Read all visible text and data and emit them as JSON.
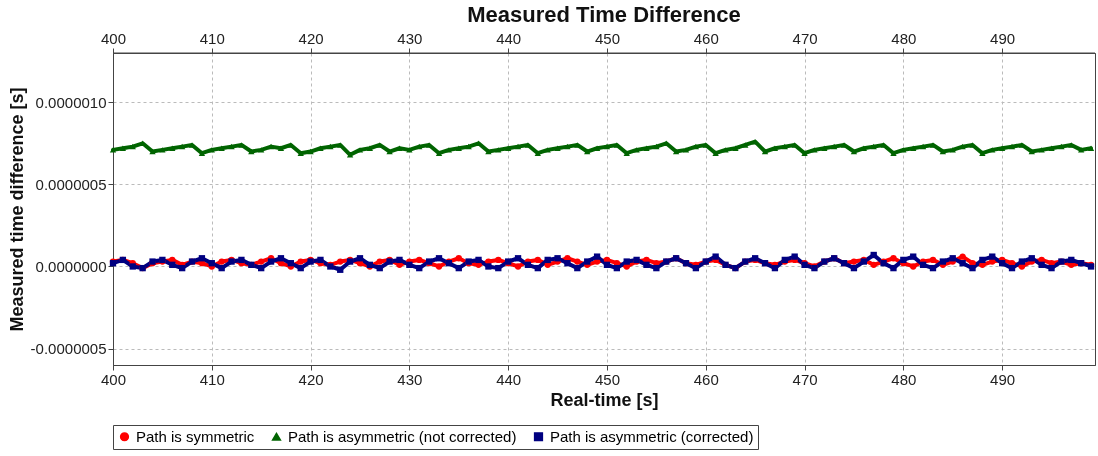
{
  "chart_data": {
    "type": "line",
    "title": "Measured Time Difference",
    "xlabel": "Real-time [s]",
    "ylabel": "Measured time difference [s]",
    "x": [
      400,
      401,
      402,
      403,
      404,
      405,
      406,
      407,
      408,
      409,
      410,
      411,
      412,
      413,
      414,
      415,
      416,
      417,
      418,
      419,
      420,
      421,
      422,
      423,
      424,
      425,
      426,
      427,
      428,
      429,
      430,
      431,
      432,
      433,
      434,
      435,
      436,
      437,
      438,
      439,
      440,
      441,
      442,
      443,
      444,
      445,
      446,
      447,
      448,
      449,
      450,
      451,
      452,
      453,
      454,
      455,
      456,
      457,
      458,
      459,
      460,
      461,
      462,
      463,
      464,
      465,
      466,
      467,
      468,
      469,
      470,
      471,
      472,
      473,
      474,
      475,
      476,
      477,
      478,
      479,
      480,
      481,
      482,
      483,
      484,
      485,
      486,
      487,
      488,
      489,
      490,
      491,
      492,
      493,
      494,
      495,
      496,
      497,
      498,
      499
    ],
    "series": [
      {
        "name": "Path is symmetric",
        "color": "#ff0000",
        "marker": "circle",
        "values": [
          3e-08,
          4e-08,
          2e-08,
          -1e-08,
          2e-08,
          3e-08,
          4e-08,
          1e-08,
          3e-08,
          2e-08,
          0,
          3e-08,
          4e-08,
          2e-08,
          1e-08,
          3e-08,
          5e-08,
          2e-08,
          0,
          3e-08,
          4e-08,
          2e-08,
          1e-08,
          3e-08,
          4e-08,
          2e-08,
          0,
          3e-08,
          4e-08,
          1e-08,
          3e-08,
          4e-08,
          2e-08,
          0,
          3e-08,
          5e-08,
          2e-08,
          1e-08,
          3e-08,
          4e-08,
          2e-08,
          0,
          3e-08,
          4e-08,
          1e-08,
          3e-08,
          5e-08,
          3e-08,
          1e-08,
          3e-08,
          4e-08,
          2e-08,
          0,
          3e-08,
          4e-08,
          2e-08,
          3e-08,
          5e-08,
          2e-08,
          1e-08,
          3e-08,
          4e-08,
          1e-08,
          -1e-08,
          3e-08,
          4e-08,
          2e-08,
          1e-08,
          3e-08,
          4e-08,
          2e-08,
          0,
          3e-08,
          5e-08,
          2e-08,
          3e-08,
          4e-08,
          1e-08,
          3e-08,
          5e-08,
          2e-08,
          0,
          3e-08,
          4e-08,
          1e-08,
          3e-08,
          6e-08,
          2e-08,
          1e-08,
          3e-08,
          4e-08,
          2e-08,
          0,
          3e-08,
          4e-08,
          2e-08,
          3e-08,
          1e-08,
          2e-08,
          1e-08
        ]
      },
      {
        "name": "Path is asymmetric (not corrected)",
        "color": "#006400",
        "marker": "triangle",
        "values": [
          7.1e-07,
          7.2e-07,
          7.3e-07,
          7.5e-07,
          7e-07,
          7.1e-07,
          7.2e-07,
          7.3e-07,
          7.4e-07,
          6.9e-07,
          7.1e-07,
          7.2e-07,
          7.3e-07,
          7.4e-07,
          7e-07,
          7.1e-07,
          7.3e-07,
          7.2e-07,
          7.4e-07,
          6.9e-07,
          7e-07,
          7.2e-07,
          7.3e-07,
          7.4e-07,
          6.8e-07,
          7.1e-07,
          7.2e-07,
          7.4e-07,
          7e-07,
          7.2e-07,
          7.1e-07,
          7.3e-07,
          7.4e-07,
          6.9e-07,
          7.1e-07,
          7.2e-07,
          7.3e-07,
          7.5e-07,
          7e-07,
          7.1e-07,
          7.2e-07,
          7.3e-07,
          7.4e-07,
          6.9e-07,
          7.1e-07,
          7.2e-07,
          7.3e-07,
          7.4e-07,
          7e-07,
          7.2e-07,
          7.3e-07,
          7.4e-07,
          6.9e-07,
          7.1e-07,
          7.2e-07,
          7.3e-07,
          7.5e-07,
          7e-07,
          7.1e-07,
          7.3e-07,
          7.4e-07,
          6.9e-07,
          7.1e-07,
          7.2e-07,
          7.4e-07,
          7.6e-07,
          7e-07,
          7.2e-07,
          7.3e-07,
          7.4e-07,
          6.9e-07,
          7.1e-07,
          7.2e-07,
          7.3e-07,
          7.4e-07,
          7e-07,
          7.2e-07,
          7.3e-07,
          7.4e-07,
          6.9e-07,
          7.1e-07,
          7.2e-07,
          7.3e-07,
          7.4e-07,
          7e-07,
          7.1e-07,
          7.3e-07,
          7.4e-07,
          6.9e-07,
          7.1e-07,
          7.2e-07,
          7.3e-07,
          7.4e-07,
          7e-07,
          7.1e-07,
          7.2e-07,
          7.3e-07,
          7.4e-07,
          7.1e-07,
          7.2e-07
        ]
      },
      {
        "name": "Path is asymmetric (corrected)",
        "color": "#000080",
        "marker": "square",
        "values": [
          2e-08,
          4e-08,
          0,
          -1e-08,
          3e-08,
          4e-08,
          1e-08,
          -1e-08,
          3e-08,
          5e-08,
          2e-08,
          -1e-08,
          3e-08,
          4e-08,
          1e-08,
          -1e-08,
          3e-08,
          5e-08,
          2e-08,
          -1e-08,
          3e-08,
          4e-08,
          0,
          -2e-08,
          3e-08,
          5e-08,
          1e-08,
          -1e-08,
          3e-08,
          4e-08,
          1e-08,
          -1e-08,
          3e-08,
          5e-08,
          2e-08,
          -1e-08,
          3e-08,
          4e-08,
          0,
          -1e-08,
          3e-08,
          5e-08,
          1e-08,
          -1e-08,
          4e-08,
          5e-08,
          2e-08,
          -1e-08,
          3e-08,
          6e-08,
          1e-08,
          -1e-08,
          3e-08,
          4e-08,
          1e-08,
          -1e-08,
          3e-08,
          5e-08,
          2e-08,
          -1e-08,
          3e-08,
          6e-08,
          1e-08,
          -1e-08,
          3e-08,
          5e-08,
          2e-08,
          -1e-08,
          4e-08,
          6e-08,
          1e-08,
          -1e-08,
          3e-08,
          5e-08,
          2e-08,
          -1e-08,
          3e-08,
          7e-08,
          2e-08,
          -1e-08,
          4e-08,
          6e-08,
          1e-08,
          -1e-08,
          3e-08,
          5e-08,
          2e-08,
          -1e-08,
          4e-08,
          6e-08,
          2e-08,
          -1e-08,
          3e-08,
          5e-08,
          1e-08,
          -1e-08,
          3e-08,
          4e-08,
          2e-08,
          0
        ]
      }
    ],
    "xlim": [
      400,
      499.4
    ],
    "xticks": [
      400,
      410,
      420,
      430,
      440,
      450,
      460,
      470,
      480,
      490
    ],
    "x2lim": [
      400,
      499.4
    ],
    "x2ticks": [
      400,
      410,
      420,
      430,
      440,
      450,
      460,
      470,
      480,
      490
    ],
    "ylim": [
      -6e-07,
      1.3e-06
    ],
    "yticks": [
      {
        "value": -5e-07,
        "label": "-0.0000005"
      },
      {
        "value": 0,
        "label": "0.0000000"
      },
      {
        "value": 5e-07,
        "label": "0.0000005"
      },
      {
        "value": 1e-06,
        "label": "0.0000010"
      }
    ],
    "grid": true,
    "legend": "bottom",
    "line_style": "solid"
  }
}
